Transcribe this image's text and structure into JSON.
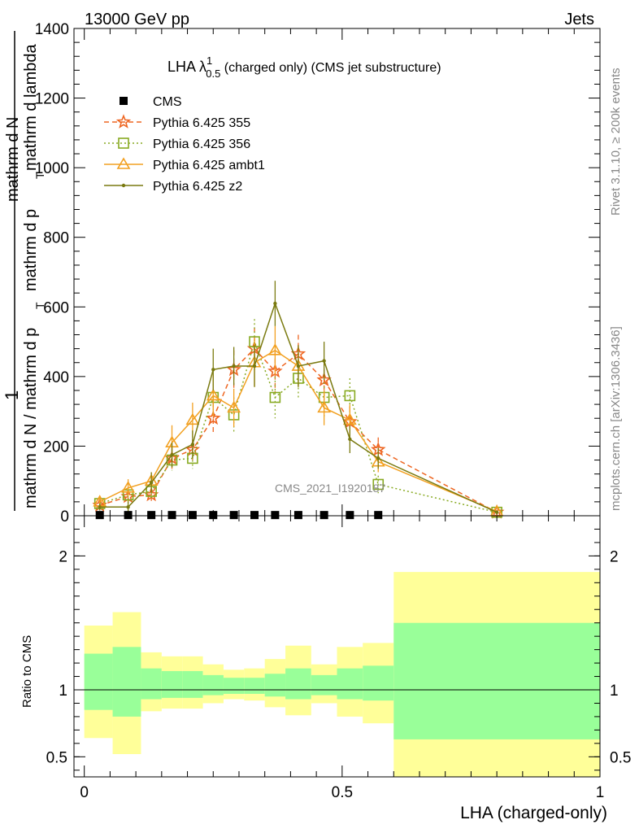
{
  "header": {
    "left": "13000 GeV pp",
    "right": "Jets"
  },
  "side_labels": {
    "rivet": "Rivet 3.1.10, ≥ 200k events",
    "mcplots": "mcplots.cern.ch [arXiv:1306.3436]"
  },
  "watermark": "CMS_2021_I1920187",
  "chart_data": [
    {
      "type": "line",
      "title_main": "LHA λ",
      "title_sup": "1",
      "title_sub": "0.5",
      "title_rest": " (charged only) (CMS jet substructure)",
      "ylabel_prefix": "1",
      "ylabel_numerator": "mathrm d N / mathrm d p",
      "ylabel_denominator": "mathrm d N / mathrm d p",
      "ylabel_fraction_top": "mathrm d N",
      "ylabel_fraction_bottom": "mathrm d p",
      "ylabel_lambda": "mathrm d lambda",
      "ylabel_T": "T",
      "xlabel": "",
      "ylim": [
        0,
        1400
      ],
      "xlim": [
        -0.02,
        1.0
      ],
      "yticks": [
        0,
        200,
        400,
        600,
        800,
        1000,
        1200,
        1400
      ],
      "ytick_labels": [
        "0",
        "200",
        "400",
        "600",
        "800",
        "1000",
        "1200",
        "1400"
      ],
      "x": [
        0.03,
        0.085,
        0.13,
        0.17,
        0.21,
        0.25,
        0.29,
        0.33,
        0.37,
        0.415,
        0.465,
        0.515,
        0.57,
        0.8
      ],
      "series": [
        {
          "name": "CMS",
          "color": "#000000",
          "marker": "square",
          "values": [
            2,
            2,
            2,
            2,
            2,
            2,
            2,
            2,
            2,
            2,
            2,
            2,
            2,
            null
          ]
        },
        {
          "name": "Pythia 6.425 355",
          "color": "#ee6622",
          "marker": "star",
          "dash": "dashed",
          "values": [
            30,
            55,
            60,
            165,
            190,
            280,
            420,
            480,
            415,
            465,
            390,
            270,
            190,
            10
          ],
          "errors": [
            12,
            20,
            20,
            30,
            30,
            45,
            55,
            60,
            60,
            55,
            55,
            45,
            35,
            5
          ]
        },
        {
          "name": "Pythia 6.425 356",
          "color": "#88aa22",
          "marker": "open-square",
          "dash": "dotted",
          "values": [
            35,
            60,
            70,
            160,
            165,
            340,
            290,
            500,
            340,
            395,
            340,
            345,
            90,
            10
          ],
          "errors": [
            12,
            20,
            20,
            30,
            30,
            50,
            50,
            65,
            60,
            55,
            55,
            50,
            25,
            5
          ]
        },
        {
          "name": "Pythia 6.425 ambt1",
          "color": "#f2a020",
          "marker": "open-triangle",
          "dash": "solid",
          "values": [
            40,
            80,
            100,
            210,
            275,
            345,
            310,
            440,
            475,
            430,
            310,
            275,
            155,
            12
          ],
          "errors": [
            15,
            25,
            25,
            50,
            50,
            60,
            55,
            70,
            70,
            60,
            50,
            45,
            30,
            5
          ]
        },
        {
          "name": "Pythia 6.425 z2",
          "color": "#7a7a10",
          "marker": "dot",
          "dash": "solid",
          "values": [
            25,
            25,
            95,
            175,
            205,
            420,
            430,
            430,
            610,
            430,
            445,
            220,
            165,
            10
          ],
          "errors": [
            10,
            15,
            30,
            35,
            40,
            60,
            55,
            60,
            65,
            60,
            55,
            40,
            30,
            5
          ]
        }
      ]
    },
    {
      "type": "area",
      "ylabel": "Ratio to CMS",
      "xlabel": "LHA (charged-only)",
      "xlim": [
        -0.02,
        1.0
      ],
      "ylim": [
        0.35,
        2.3
      ],
      "xticks": [
        0,
        0.5,
        1
      ],
      "xtick_labels": [
        "0",
        "0.5",
        "1"
      ],
      "yticks": [
        0.5,
        1,
        2
      ],
      "ytick_labels": [
        "0.5",
        "1",
        "2"
      ],
      "reference": 1,
      "bins": [
        {
          "lo": 0.0,
          "hi": 0.055,
          "stat_lo": 0.85,
          "stat_hi": 1.27,
          "tot_lo": 0.64,
          "tot_hi": 1.48
        },
        {
          "lo": 0.055,
          "hi": 0.11,
          "stat_lo": 0.8,
          "stat_hi": 1.32,
          "tot_lo": 0.52,
          "tot_hi": 1.58
        },
        {
          "lo": 0.11,
          "hi": 0.15,
          "stat_lo": 0.93,
          "stat_hi": 1.16,
          "tot_lo": 0.84,
          "tot_hi": 1.28
        },
        {
          "lo": 0.15,
          "hi": 0.19,
          "stat_lo": 0.94,
          "stat_hi": 1.14,
          "tot_lo": 0.86,
          "tot_hi": 1.25
        },
        {
          "lo": 0.19,
          "hi": 0.23,
          "stat_lo": 0.94,
          "stat_hi": 1.14,
          "tot_lo": 0.86,
          "tot_hi": 1.25
        },
        {
          "lo": 0.23,
          "hi": 0.27,
          "stat_lo": 0.96,
          "stat_hi": 1.11,
          "tot_lo": 0.9,
          "tot_hi": 1.19
        },
        {
          "lo": 0.27,
          "hi": 0.31,
          "stat_lo": 0.97,
          "stat_hi": 1.09,
          "tot_lo": 0.93,
          "tot_hi": 1.15
        },
        {
          "lo": 0.31,
          "hi": 0.35,
          "stat_lo": 0.97,
          "stat_hi": 1.09,
          "tot_lo": 0.92,
          "tot_hi": 1.16
        },
        {
          "lo": 0.35,
          "hi": 0.39,
          "stat_lo": 0.95,
          "stat_hi": 1.12,
          "tot_lo": 0.87,
          "tot_hi": 1.23
        },
        {
          "lo": 0.39,
          "hi": 0.44,
          "stat_lo": 0.93,
          "stat_hi": 1.16,
          "tot_lo": 0.81,
          "tot_hi": 1.33
        },
        {
          "lo": 0.44,
          "hi": 0.49,
          "stat_lo": 0.96,
          "stat_hi": 1.11,
          "tot_lo": 0.9,
          "tot_hi": 1.19
        },
        {
          "lo": 0.49,
          "hi": 0.54,
          "stat_lo": 0.93,
          "stat_hi": 1.16,
          "tot_lo": 0.8,
          "tot_hi": 1.32
        },
        {
          "lo": 0.54,
          "hi": 0.6,
          "stat_lo": 0.92,
          "stat_hi": 1.18,
          "tot_lo": 0.75,
          "tot_hi": 1.35
        },
        {
          "lo": 0.6,
          "hi": 1.0,
          "stat_lo": 0.63,
          "stat_hi": 1.5,
          "tot_lo": 0.35,
          "tot_hi": 1.88
        }
      ],
      "band_colors": {
        "stat": "#99ff99",
        "total": "#ffff99"
      }
    }
  ]
}
